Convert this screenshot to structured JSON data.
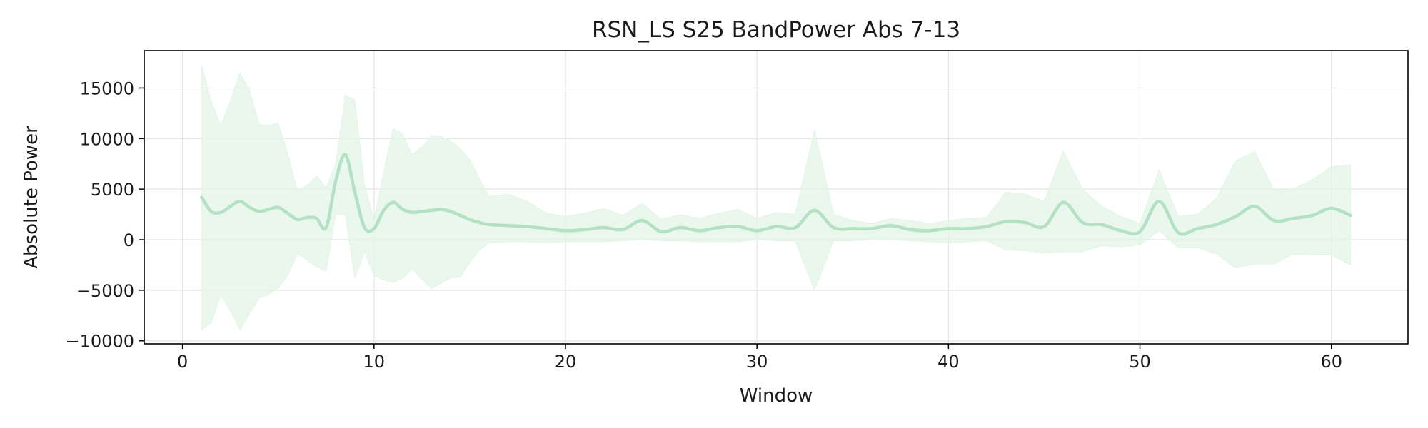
{
  "chart_data": {
    "type": "line",
    "title": "RSN_LS S25 BandPower Abs 7-13",
    "xlabel": "Window",
    "ylabel": "Absolute Power",
    "xlim": [
      -2,
      64
    ],
    "ylim": [
      -10300,
      18700
    ],
    "x_ticks": [
      0,
      10,
      20,
      30,
      40,
      50,
      60
    ],
    "y_ticks": [
      -10000,
      -5000,
      0,
      5000,
      10000,
      15000
    ],
    "y_tick_labels": [
      "−10000",
      "−5000",
      "0",
      "5000",
      "10000",
      "15000"
    ],
    "grid": true,
    "colors": {
      "line": "#b4e1c3",
      "band": "#e2f4e7",
      "grid": "#e3e3e3"
    },
    "series": [
      {
        "x": [
          1,
          1.5,
          2,
          2.5,
          3,
          3.5,
          4,
          4.5,
          5,
          5.5,
          6,
          6.5,
          7,
          7.5,
          8,
          8.5,
          9,
          9.5,
          10,
          10.5,
          11,
          11.5,
          12,
          12.5,
          13,
          13.5,
          14,
          14.5,
          15,
          15.5,
          16,
          17,
          18,
          19,
          20,
          21,
          22,
          23,
          24,
          25,
          26,
          27,
          28,
          29,
          30,
          31,
          32,
          33,
          34,
          35,
          36,
          37,
          38,
          39,
          40,
          41,
          42,
          43,
          44,
          45,
          46,
          47,
          48,
          49,
          50,
          51,
          52,
          53,
          54,
          55,
          56,
          57,
          58,
          59,
          60,
          61
        ],
        "mean": [
          4200,
          2800,
          2700,
          3300,
          3800,
          3200,
          2800,
          3000,
          3200,
          2600,
          2000,
          2200,
          2100,
          1200,
          5800,
          8400,
          4700,
          1200,
          1100,
          2900,
          3700,
          3000,
          2700,
          2800,
          2900,
          3000,
          2800,
          2400,
          2000,
          1700,
          1500,
          1400,
          1300,
          1100,
          900,
          1000,
          1200,
          1000,
          1900,
          800,
          1200,
          900,
          1200,
          1300,
          900,
          1300,
          1200,
          2900,
          1200,
          1100,
          1100,
          1400,
          1000,
          900,
          1100,
          1100,
          1300,
          1800,
          1700,
          1300,
          3700,
          1700,
          1500,
          900,
          800,
          3800,
          700,
          1100,
          1500,
          2300,
          3300,
          1900,
          2100,
          2400,
          3100,
          2400
        ],
        "upper": [
          17200,
          13700,
          11300,
          13700,
          16500,
          14800,
          11400,
          11300,
          11500,
          8500,
          4800,
          5400,
          6300,
          5100,
          7500,
          14300,
          13800,
          5500,
          1900,
          6700,
          11000,
          10400,
          8400,
          9200,
          10300,
          10200,
          9800,
          9000,
          7900,
          6000,
          4300,
          4500,
          3800,
          2600,
          2300,
          2600,
          3100,
          2400,
          3600,
          2000,
          2500,
          2100,
          2600,
          3000,
          2100,
          2700,
          2500,
          10900,
          2500,
          1900,
          1600,
          2100,
          1900,
          1600,
          1900,
          2100,
          2200,
          4700,
          4500,
          3800,
          8800,
          5000,
          3300,
          2300,
          1600,
          6900,
          2300,
          2500,
          4100,
          7800,
          8700,
          4900,
          5000,
          5900,
          7200,
          7400
        ],
        "lower": [
          -8900,
          -8200,
          -5500,
          -7000,
          -8900,
          -7300,
          -5800,
          -5400,
          -4800,
          -3500,
          -1400,
          -2000,
          -2700,
          -3100,
          2500,
          2500,
          -3800,
          -1200,
          -3500,
          -4000,
          -4200,
          -3800,
          -2900,
          -3900,
          -4900,
          -4300,
          -3800,
          -3700,
          -2300,
          -1000,
          -300,
          -200,
          -200,
          -300,
          -200,
          -200,
          -200,
          -100,
          0,
          -100,
          -100,
          -200,
          -200,
          -200,
          0,
          -100,
          -100,
          -5000,
          -100,
          -100,
          0,
          0,
          -100,
          -200,
          -300,
          -200,
          -100,
          -1000,
          -1100,
          -1300,
          -1200,
          -1200,
          -600,
          -700,
          -500,
          900,
          -800,
          -800,
          -1400,
          -2800,
          -2400,
          -2400,
          -1400,
          -1500,
          -1500,
          -2500
        ]
      }
    ]
  }
}
